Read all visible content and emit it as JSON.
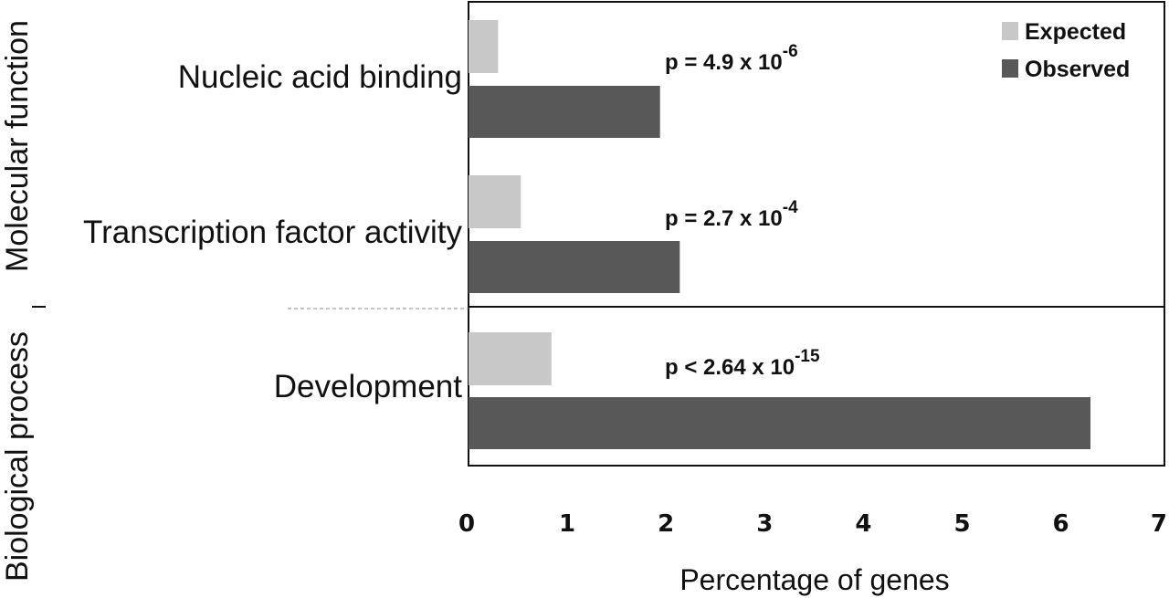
{
  "chart_data": {
    "type": "bar",
    "orientation": "horizontal",
    "xlabel": "Percentage of genes",
    "xlim": [
      0,
      7
    ],
    "xticks": [
      "0",
      "1",
      "2",
      "3",
      "4",
      "5",
      "6",
      "7"
    ],
    "groups": [
      {
        "label": "Molecular function",
        "categories": [
          "Nucleic acid binding",
          "Transcription factor activity"
        ]
      },
      {
        "label": "Biological process",
        "categories": [
          "Development"
        ]
      }
    ],
    "categories": [
      "Nucleic acid binding",
      "Transcription factor activity",
      "Development"
    ],
    "series": [
      {
        "name": "Expected",
        "color": "#c8c8c8",
        "values": [
          0.3,
          0.53,
          0.84
        ]
      },
      {
        "name": "Observed",
        "color": "#585858",
        "values": [
          1.94,
          2.14,
          6.3
        ]
      }
    ],
    "annotations": [
      {
        "base": "p = 4.9 x 10",
        "exponent": "-6"
      },
      {
        "base": "p = 2.7 x 10",
        "exponent": "-4"
      },
      {
        "base": "p < 2.64 x 10",
        "exponent": "-15"
      }
    ],
    "legend": "top-right"
  }
}
